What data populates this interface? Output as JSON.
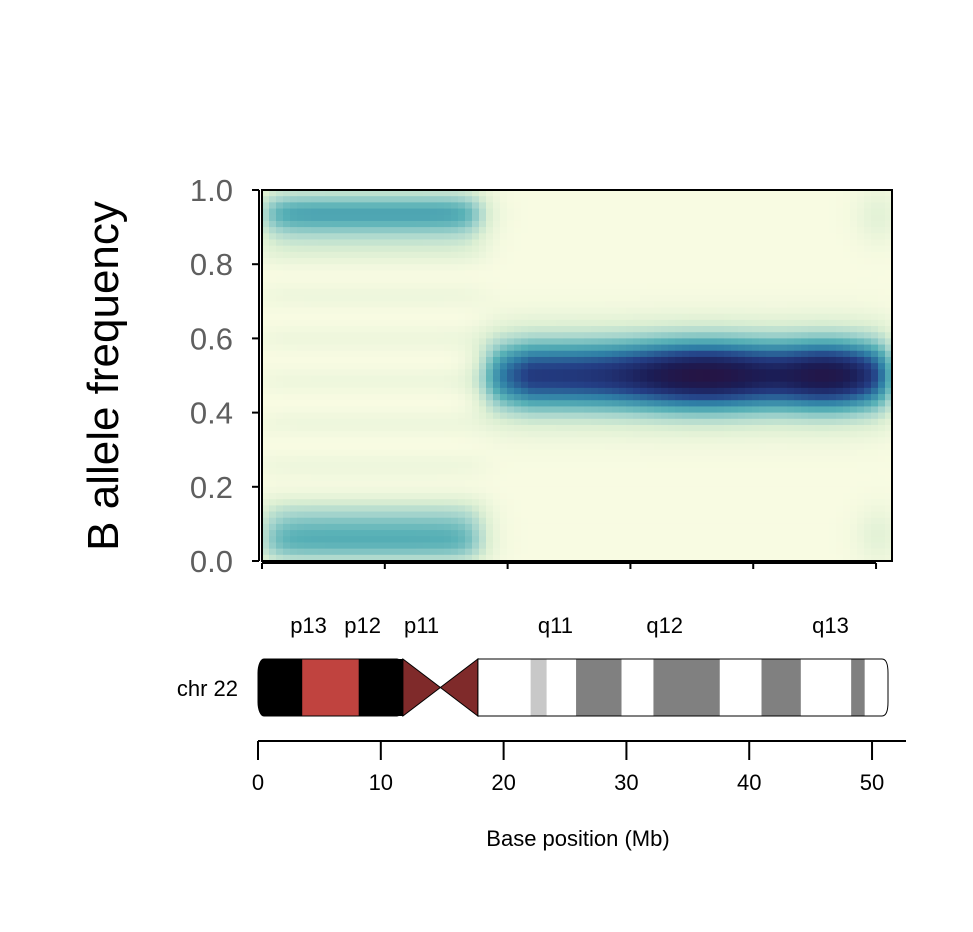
{
  "chart_data": [
    {
      "type": "heatmap",
      "title": "",
      "ylabel": "B allele frequency",
      "xlabel": "",
      "xlim": [
        0,
        51.3
      ],
      "ylim": [
        0,
        1
      ],
      "yticks": [
        "0.0",
        "0.2",
        "0.4",
        "0.6",
        "0.8",
        "1.0"
      ],
      "xticks": [
        0,
        10,
        20,
        30,
        40,
        50
      ],
      "grid": false,
      "colormap": [
        "#f8fbe2",
        "#dcefd3",
        "#a6d5cd",
        "#57b0b6",
        "#2f7fa6",
        "#243f86",
        "#1b1d56",
        "#2b0f3a"
      ],
      "density_components": [
        {
          "x_from": 0,
          "x_to": 18,
          "baf": 0.93,
          "intensity": 0.42
        },
        {
          "x_from": 0,
          "x_to": 18,
          "baf": 0.07,
          "intensity": 0.42
        },
        {
          "x_from": 18,
          "x_to": 51.3,
          "baf": 0.5,
          "intensity": 0.95
        },
        {
          "x_from": 49,
          "x_to": 51.3,
          "baf": 0.93,
          "intensity": 0.15
        },
        {
          "x_from": 49,
          "x_to": 51.3,
          "baf": 0.07,
          "intensity": 0.15
        }
      ]
    },
    {
      "type": "ideogram",
      "chromosome_label": "chr 22",
      "xlabel": "Base position (Mb)",
      "xlim": [
        0,
        51.3
      ],
      "xticks": [
        "0",
        "10",
        "20",
        "30",
        "40",
        "50"
      ],
      "band_labels": [
        {
          "name": "p13",
          "pos": 2.0
        },
        {
          "name": "p12",
          "pos": 6.4
        },
        {
          "name": "p11",
          "pos": 11.2
        },
        {
          "name": "q11",
          "pos": 22.1
        },
        {
          "name": "q12",
          "pos": 31.0
        },
        {
          "name": "q13",
          "pos": 44.5
        }
      ],
      "centromere": [
        11.8,
        17.9
      ],
      "bands": [
        {
          "start": 0,
          "end": 3.6,
          "stain": "gpos100",
          "color": "#000000"
        },
        {
          "start": 3.6,
          "end": 8.2,
          "stain": "stalk",
          "color": "#c0433f"
        },
        {
          "start": 8.2,
          "end": 11.8,
          "stain": "gpos100",
          "color": "#000000"
        },
        {
          "start": 11.8,
          "end": 17.9,
          "stain": "acen",
          "color": "#7f2a2a"
        },
        {
          "start": 17.9,
          "end": 22.2,
          "stain": "gneg",
          "color": "#ffffff"
        },
        {
          "start": 22.2,
          "end": 23.5,
          "stain": "gpos25",
          "color": "#c8c8c8"
        },
        {
          "start": 23.5,
          "end": 25.9,
          "stain": "gneg",
          "color": "#ffffff"
        },
        {
          "start": 25.9,
          "end": 29.6,
          "stain": "gpos50",
          "color": "#808080"
        },
        {
          "start": 29.6,
          "end": 32.2,
          "stain": "gneg",
          "color": "#ffffff"
        },
        {
          "start": 32.2,
          "end": 37.6,
          "stain": "gpos50",
          "color": "#808080"
        },
        {
          "start": 37.6,
          "end": 41.0,
          "stain": "gneg",
          "color": "#ffffff"
        },
        {
          "start": 41.0,
          "end": 44.2,
          "stain": "gpos50",
          "color": "#808080"
        },
        {
          "start": 44.2,
          "end": 48.3,
          "stain": "gneg",
          "color": "#ffffff"
        },
        {
          "start": 48.3,
          "end": 49.4,
          "stain": "gpos50",
          "color": "#808080"
        },
        {
          "start": 49.4,
          "end": 51.3,
          "stain": "gneg",
          "color": "#ffffff"
        }
      ]
    }
  ]
}
